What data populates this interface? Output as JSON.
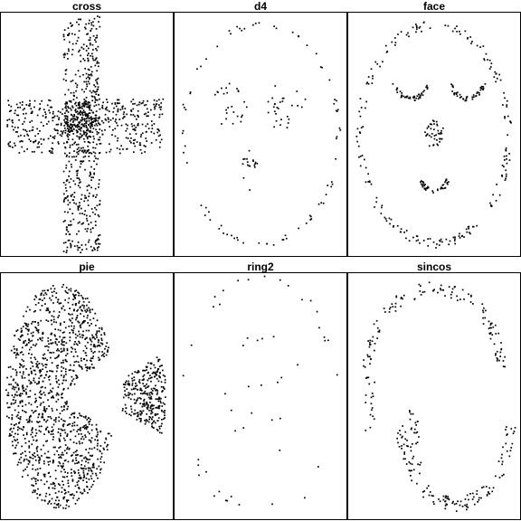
{
  "figure": {
    "background": "#ffffff",
    "point_color": "#000000",
    "layout": "2x3 small multiples"
  },
  "chart_data": [
    {
      "type": "scatter",
      "title": "cross",
      "xlim": [
        0,
        1
      ],
      "ylim": [
        0,
        1
      ],
      "grid": false,
      "axes": "hidden",
      "shape": "plus / cross",
      "regions": [
        {
          "kind": "rect",
          "x": [
            0.36,
            0.58
          ],
          "y": [
            0.0,
            1.0
          ],
          "n": 520
        },
        {
          "kind": "rect",
          "x": [
            0.02,
            0.96
          ],
          "y": [
            0.42,
            0.65
          ],
          "n": 460
        },
        {
          "kind": "ellipse",
          "cx": 0.47,
          "cy": 0.56,
          "rx": 0.1,
          "ry": 0.08,
          "n": 140
        }
      ]
    },
    {
      "type": "scatter",
      "title": "d4",
      "xlim": [
        0,
        1
      ],
      "ylim": [
        0,
        1
      ],
      "grid": false,
      "axes": "hidden",
      "shape": "sparse face outline",
      "regions": [
        {
          "kind": "ring",
          "cx": 0.5,
          "cy": 0.5,
          "rx": 0.47,
          "ry": 0.46,
          "w": 0.015,
          "n": 80
        },
        {
          "kind": "ellipse",
          "cx": 0.32,
          "cy": 0.62,
          "rx": 0.11,
          "ry": 0.1,
          "n": 25
        },
        {
          "kind": "ellipse",
          "cx": 0.66,
          "cy": 0.62,
          "rx": 0.12,
          "ry": 0.12,
          "n": 28
        },
        {
          "kind": "ellipse",
          "cx": 0.44,
          "cy": 0.35,
          "rx": 0.05,
          "ry": 0.09,
          "n": 18
        }
      ]
    },
    {
      "type": "scatter",
      "title": "face",
      "xlim": [
        0,
        1
      ],
      "ylim": [
        0,
        1
      ],
      "grid": false,
      "axes": "hidden",
      "shape": "smiling face",
      "regions": [
        {
          "kind": "ring",
          "cx": 0.5,
          "cy": 0.5,
          "rx": 0.45,
          "ry": 0.46,
          "w": 0.02,
          "n": 200
        },
        {
          "kind": "arc",
          "cx": 0.36,
          "cy": 0.75,
          "rx": 0.11,
          "ry": 0.1,
          "a0": 200,
          "a1": 340,
          "w": 0.01,
          "n": 45
        },
        {
          "kind": "arc",
          "cx": 0.7,
          "cy": 0.75,
          "rx": 0.11,
          "ry": 0.1,
          "a0": 200,
          "a1": 340,
          "w": 0.01,
          "n": 45
        },
        {
          "kind": "ellipse",
          "cx": 0.5,
          "cy": 0.5,
          "rx": 0.06,
          "ry": 0.06,
          "n": 40
        },
        {
          "kind": "arc",
          "cx": 0.5,
          "cy": 0.34,
          "rx": 0.09,
          "ry": 0.08,
          "a0": 200,
          "a1": 340,
          "w": 0.01,
          "n": 40
        }
      ]
    },
    {
      "type": "scatter",
      "title": "pie",
      "xlim": [
        0,
        1
      ],
      "ylim": [
        0,
        1
      ],
      "grid": false,
      "axes": "hidden",
      "shape": "disc with a wedge pulled out",
      "regions": [
        {
          "kind": "pie",
          "cx": 0.34,
          "cy": 0.5,
          "rx": 0.33,
          "ry": 0.47,
          "cut": [
            -20,
            22
          ],
          "n": 1300
        },
        {
          "kind": "wedge",
          "cx": 0.56,
          "cy": 0.5,
          "rx": 0.42,
          "ry": 0.47,
          "a0": -20,
          "a1": 22,
          "n": 300
        }
      ]
    },
    {
      "type": "scatter",
      "title": "ring2",
      "xlim": [
        0,
        1
      ],
      "ylim": [
        0,
        1
      ],
      "grid": false,
      "axes": "hidden",
      "shape": "very sparse ring",
      "regions": [
        {
          "kind": "ring",
          "cx": 0.5,
          "cy": 0.5,
          "rx": 0.47,
          "ry": 0.48,
          "w": 0.025,
          "n": 32
        },
        {
          "kind": "ellipse",
          "cx": 0.5,
          "cy": 0.5,
          "rx": 0.25,
          "ry": 0.3,
          "n": 18
        }
      ]
    },
    {
      "type": "scatter",
      "title": "sincos",
      "xlim": [
        0,
        1
      ],
      "ylim": [
        0,
        1
      ],
      "grid": false,
      "axes": "hidden",
      "shape": "looping sine/cosine curve",
      "regions": [
        {
          "kind": "arc",
          "cx": 0.5,
          "cy": 0.62,
          "rx": 0.4,
          "ry": 0.33,
          "a0": 0,
          "a1": 180,
          "w": 0.03,
          "n": 120
        },
        {
          "kind": "arc",
          "cx": 0.63,
          "cy": 0.38,
          "rx": 0.33,
          "ry": 0.33,
          "a0": 180,
          "a1": 360,
          "w": 0.03,
          "n": 120
        },
        {
          "kind": "rect",
          "x": [
            0.35,
            0.42
          ],
          "y": [
            0.15,
            0.45
          ],
          "n": 30
        },
        {
          "kind": "rect",
          "x": [
            0.08,
            0.14
          ],
          "y": [
            0.35,
            0.6
          ],
          "n": 18
        }
      ]
    }
  ]
}
